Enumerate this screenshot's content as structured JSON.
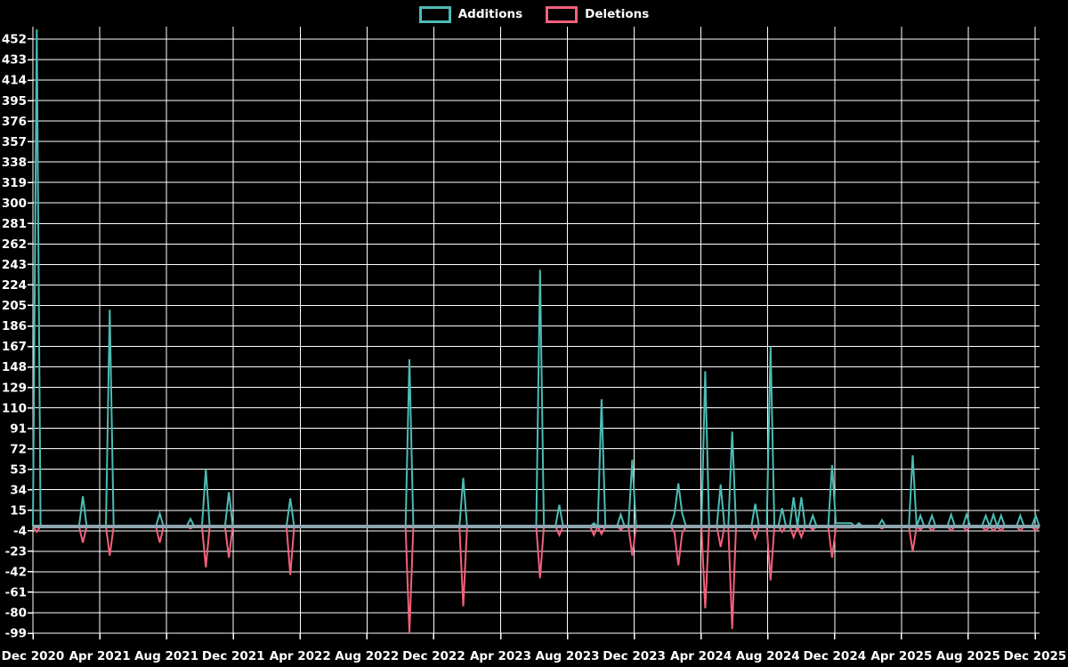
{
  "chart_data": {
    "type": "line",
    "title": "",
    "legend_position": "top-center",
    "grid": true,
    "background_color": "#000000",
    "text_color": "#ffffff",
    "gridline_color": "#ffffff",
    "zero_axis_color": "#8fa5af",
    "x_axis": {
      "tick_labels": [
        "Dec 2020",
        "Apr 2021",
        "Aug 2021",
        "Dec 2021",
        "Apr 2022",
        "Aug 2022",
        "Dec 2022",
        "Apr 2023",
        "Aug 2023",
        "Dec 2023",
        "Apr 2024",
        "Aug 2024",
        "Dec 2024",
        "Apr 2025",
        "Aug 2025",
        "Dec 2025"
      ],
      "unit": "week",
      "range": "Dec 2020 - Dec 2025"
    },
    "y_axis": {
      "tick_labels": [
        452,
        433,
        414,
        395,
        376,
        357,
        338,
        319,
        300,
        281,
        262,
        243,
        224,
        205,
        186,
        167,
        148,
        129,
        110,
        91,
        72,
        53,
        34,
        15,
        -4,
        -23,
        -42,
        -61,
        -80,
        -99
      ],
      "tick_min": -99,
      "tick_max": 452,
      "tick_step": 19,
      "plot_max": 463.5
    },
    "weeks_total": 263,
    "series": [
      {
        "name": "Additions",
        "color": "#4bbcb4",
        "points": {
          "1": 461,
          "13": 28,
          "20": 201,
          "33": 12,
          "41": 7,
          "45": 53,
          "51": 32,
          "67": 26,
          "98": 155,
          "112": 45,
          "132": 238,
          "137": 20,
          "146": 3,
          "148": 118,
          "153": 11,
          "156": 62,
          "167": 12,
          "168": 40,
          "169": 12,
          "175": 144,
          "179": 39,
          "182": 88,
          "188": 21,
          "192": 167,
          "195": 17,
          "198": 27,
          "200": 27,
          "203": 10,
          "208": 57,
          "209": 3,
          "210": 3,
          "211": 3,
          "212": 3,
          "213": 3,
          "215": 3,
          "221": 6,
          "229": 66,
          "231": 10,
          "234": 10,
          "239": 11,
          "243": 11,
          "248": 10,
          "250": 11,
          "252": 10,
          "257": 10,
          "261": 10
        }
      },
      {
        "name": "Deletions",
        "color": "#f2607a",
        "points": {
          "1": -5,
          "13": -15,
          "20": -27,
          "33": -15,
          "41": -2,
          "45": -38,
          "51": -29,
          "67": -45,
          "98": -99,
          "112": -74,
          "132": -48,
          "137": -8,
          "146": -8,
          "148": -7,
          "153": -3,
          "156": -27,
          "167": -6,
          "168": -36,
          "169": -6,
          "175": -76,
          "179": -19,
          "182": -95,
          "188": -11,
          "192": -50,
          "195": -5,
          "198": -10,
          "200": -10,
          "203": -3,
          "208": -29,
          "209": -1,
          "210": -1,
          "211": -1,
          "212": -1,
          "213": -1,
          "215": -1,
          "221": -2,
          "229": -23,
          "231": -3,
          "234": -4,
          "239": -4,
          "243": -4,
          "248": -4,
          "250": -4,
          "252": -4,
          "257": -4,
          "261": -4
        }
      }
    ]
  }
}
